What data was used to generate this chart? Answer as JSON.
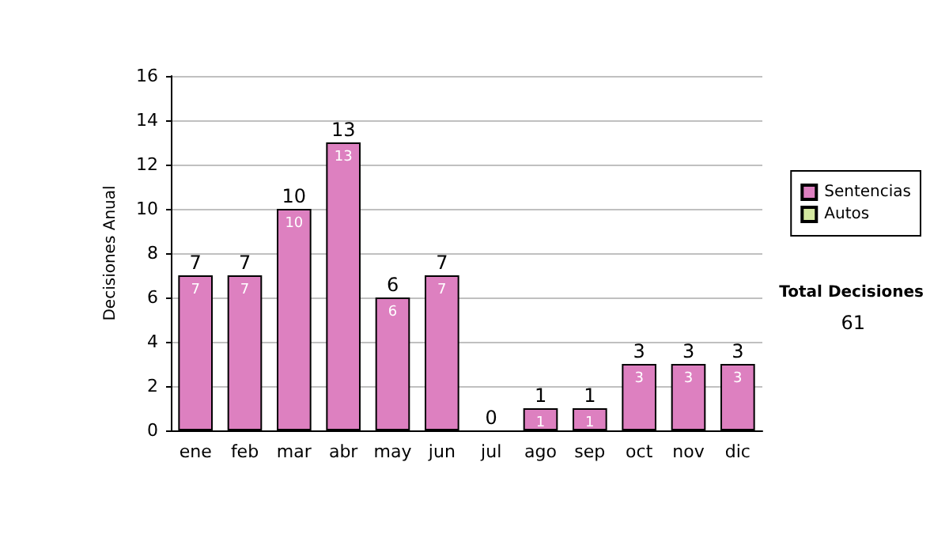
{
  "chart_data": {
    "type": "bar",
    "ylabel": "Decisiones Anual",
    "categories": [
      "ene",
      "feb",
      "mar",
      "abr",
      "may",
      "jun",
      "jul",
      "ago",
      "sep",
      "oct",
      "nov",
      "dic"
    ],
    "series": [
      {
        "name": "Sentencias",
        "color": "#dd80c0",
        "values": [
          7,
          7,
          10,
          13,
          6,
          7,
          0,
          1,
          1,
          3,
          3,
          3
        ],
        "value_labels": [
          "7",
          "7",
          "10",
          "13",
          "6",
          "7",
          null,
          "1",
          "1",
          "3",
          "3",
          "3"
        ]
      },
      {
        "name": "Autos",
        "color": "#d4e8a0",
        "values": [
          0,
          0,
          0,
          0,
          0,
          0,
          0,
          0,
          0,
          0,
          0,
          0
        ]
      }
    ],
    "stacked": true,
    "totals": [
      "7",
      "7",
      "10",
      "13",
      "6",
      "7",
      "0",
      "1",
      "1",
      "3",
      "3",
      "3"
    ],
    "ylim": [
      0,
      16
    ],
    "yticks": [
      0,
      2,
      4,
      6,
      8,
      10,
      12,
      14,
      16
    ],
    "grid": "y",
    "legend": "right",
    "annotations": [
      "Total Decisiones",
      "61"
    ]
  }
}
